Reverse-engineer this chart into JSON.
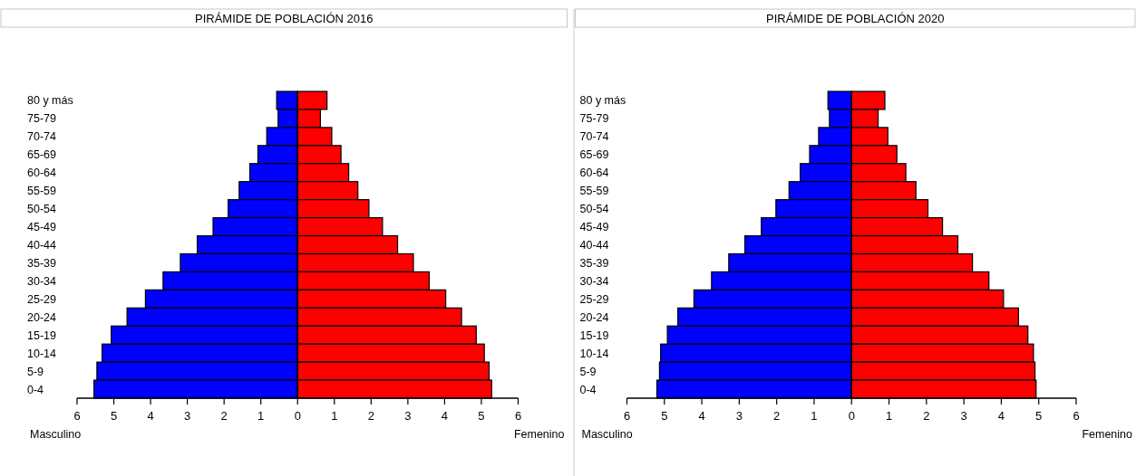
{
  "chart_data": [
    {
      "type": "bar",
      "orientation": "horizontal",
      "stacked": true,
      "title": "PIRÁMIDE DE POBLACIÓN 2016",
      "annotations": [
        "Masculino",
        "Femenino"
      ],
      "categories": [
        "80 y más",
        "75-79",
        "70-74",
        "65-69",
        "60-64",
        "55-59",
        "50-54",
        "45-49",
        "40-44",
        "35-39",
        "30-34",
        "25-29",
        "20-24",
        "15-19",
        "10-14",
        "5-9",
        "0-4"
      ],
      "series": [
        {
          "color": "#0000ff",
          "values": [
            -0.57,
            -0.53,
            -0.84,
            -1.08,
            -1.3,
            -1.59,
            -1.89,
            -2.3,
            -2.73,
            -3.19,
            -3.66,
            -4.14,
            -4.64,
            -5.07,
            -5.32,
            -5.46,
            -5.54
          ]
        },
        {
          "color": "#ff0000",
          "values": [
            0.8,
            0.62,
            0.93,
            1.18,
            1.39,
            1.64,
            1.94,
            2.31,
            2.72,
            3.15,
            3.58,
            4.03,
            4.46,
            4.86,
            5.08,
            5.21,
            5.28
          ]
        }
      ],
      "xlim": [
        -6,
        6
      ],
      "xticks": [
        {
          "value": -6,
          "label": "6"
        },
        {
          "value": -5,
          "label": "5"
        },
        {
          "value": -4,
          "label": "4"
        },
        {
          "value": -3,
          "label": "3"
        },
        {
          "value": -2,
          "label": "2"
        },
        {
          "value": -1,
          "label": "1"
        },
        0,
        1,
        2,
        3,
        4,
        5,
        6
      ]
    },
    {
      "type": "bar",
      "orientation": "horizontal",
      "stacked": true,
      "title": "PIRÁMIDE DE POBLACIÓN 2020",
      "annotations": [
        "Masculino",
        "Femenino"
      ],
      "categories": [
        "80 y más",
        "75-79",
        "70-74",
        "65-69",
        "60-64",
        "55-59",
        "50-54",
        "45-49",
        "40-44",
        "35-39",
        "30-34",
        "25-29",
        "20-24",
        "15-19",
        "10-14",
        "5-9",
        "0-4"
      ],
      "series": [
        {
          "color": "#0000ff",
          "values": [
            -0.63,
            -0.59,
            -0.88,
            -1.12,
            -1.37,
            -1.67,
            -2.02,
            -2.41,
            -2.85,
            -3.28,
            -3.74,
            -4.21,
            -4.64,
            -4.92,
            -5.1,
            -5.13,
            -5.2
          ]
        },
        {
          "color": "#ff0000",
          "values": [
            0.89,
            0.71,
            0.97,
            1.21,
            1.45,
            1.72,
            2.04,
            2.43,
            2.84,
            3.23,
            3.67,
            4.06,
            4.46,
            4.71,
            4.86,
            4.9,
            4.93
          ]
        }
      ],
      "xlim": [
        -6,
        6
      ],
      "xticks": [
        {
          "value": -6,
          "label": "6"
        },
        {
          "value": -5,
          "label": "5"
        },
        {
          "value": -4,
          "label": "4"
        },
        {
          "value": -3,
          "label": "3"
        },
        {
          "value": -2,
          "label": "2"
        },
        {
          "value": -1,
          "label": "1"
        },
        0,
        1,
        2,
        3,
        4,
        5,
        6
      ]
    }
  ]
}
